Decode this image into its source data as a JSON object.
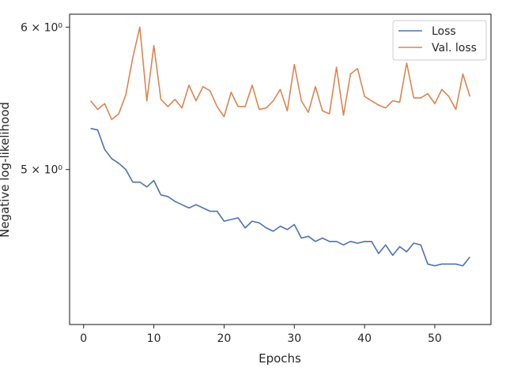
{
  "chart_data": {
    "type": "line",
    "title": "",
    "xlabel": "Epochs",
    "ylabel": "Negative log-likelihood",
    "xlim": [
      -2,
      58
    ],
    "ylim": [
      4.1,
      6.1
    ],
    "yscale": "log",
    "grid": false,
    "legend_position": "top-right",
    "x_ticks": [
      0,
      10,
      20,
      30,
      40,
      50
    ],
    "x_tick_labels": [
      "0",
      "10",
      "20",
      "30",
      "40",
      "50"
    ],
    "y_ticks": [
      5,
      6
    ],
    "y_tick_labels": [
      "5 × 10⁰",
      "6 × 10⁰"
    ],
    "x": [
      1,
      2,
      3,
      4,
      5,
      6,
      7,
      8,
      9,
      10,
      11,
      12,
      13,
      14,
      15,
      16,
      17,
      18,
      19,
      20,
      21,
      22,
      23,
      24,
      25,
      26,
      27,
      28,
      29,
      30,
      31,
      32,
      33,
      34,
      35,
      36,
      37,
      38,
      39,
      40,
      41,
      42,
      43,
      44,
      45,
      46,
      47,
      48,
      49,
      50,
      51,
      52,
      53,
      54,
      55
    ],
    "series": [
      {
        "name": "Loss",
        "color": "#4c72b0",
        "values": [
          5.27,
          5.26,
          5.13,
          5.07,
          5.04,
          5.0,
          4.92,
          4.92,
          4.89,
          4.93,
          4.84,
          4.83,
          4.8,
          4.78,
          4.76,
          4.78,
          4.76,
          4.74,
          4.74,
          4.68,
          4.69,
          4.7,
          4.64,
          4.68,
          4.67,
          4.64,
          4.62,
          4.65,
          4.63,
          4.66,
          4.58,
          4.59,
          4.56,
          4.58,
          4.56,
          4.56,
          4.54,
          4.56,
          4.55,
          4.56,
          4.56,
          4.49,
          4.54,
          4.48,
          4.53,
          4.5,
          4.55,
          4.54,
          4.43,
          4.42,
          4.43,
          4.43,
          4.43,
          4.42,
          4.47
        ]
      },
      {
        "name": "Val. loss",
        "color": "#dd8452",
        "values": [
          5.46,
          5.4,
          5.44,
          5.33,
          5.37,
          5.5,
          5.77,
          6.0,
          5.46,
          5.86,
          5.47,
          5.42,
          5.47,
          5.41,
          5.57,
          5.46,
          5.56,
          5.53,
          5.42,
          5.35,
          5.52,
          5.42,
          5.42,
          5.57,
          5.4,
          5.41,
          5.46,
          5.54,
          5.39,
          5.72,
          5.46,
          5.38,
          5.56,
          5.39,
          5.37,
          5.7,
          5.36,
          5.65,
          5.69,
          5.49,
          5.46,
          5.43,
          5.41,
          5.46,
          5.45,
          5.73,
          5.48,
          5.48,
          5.51,
          5.44,
          5.54,
          5.49,
          5.4,
          5.65,
          5.49
        ]
      }
    ]
  }
}
